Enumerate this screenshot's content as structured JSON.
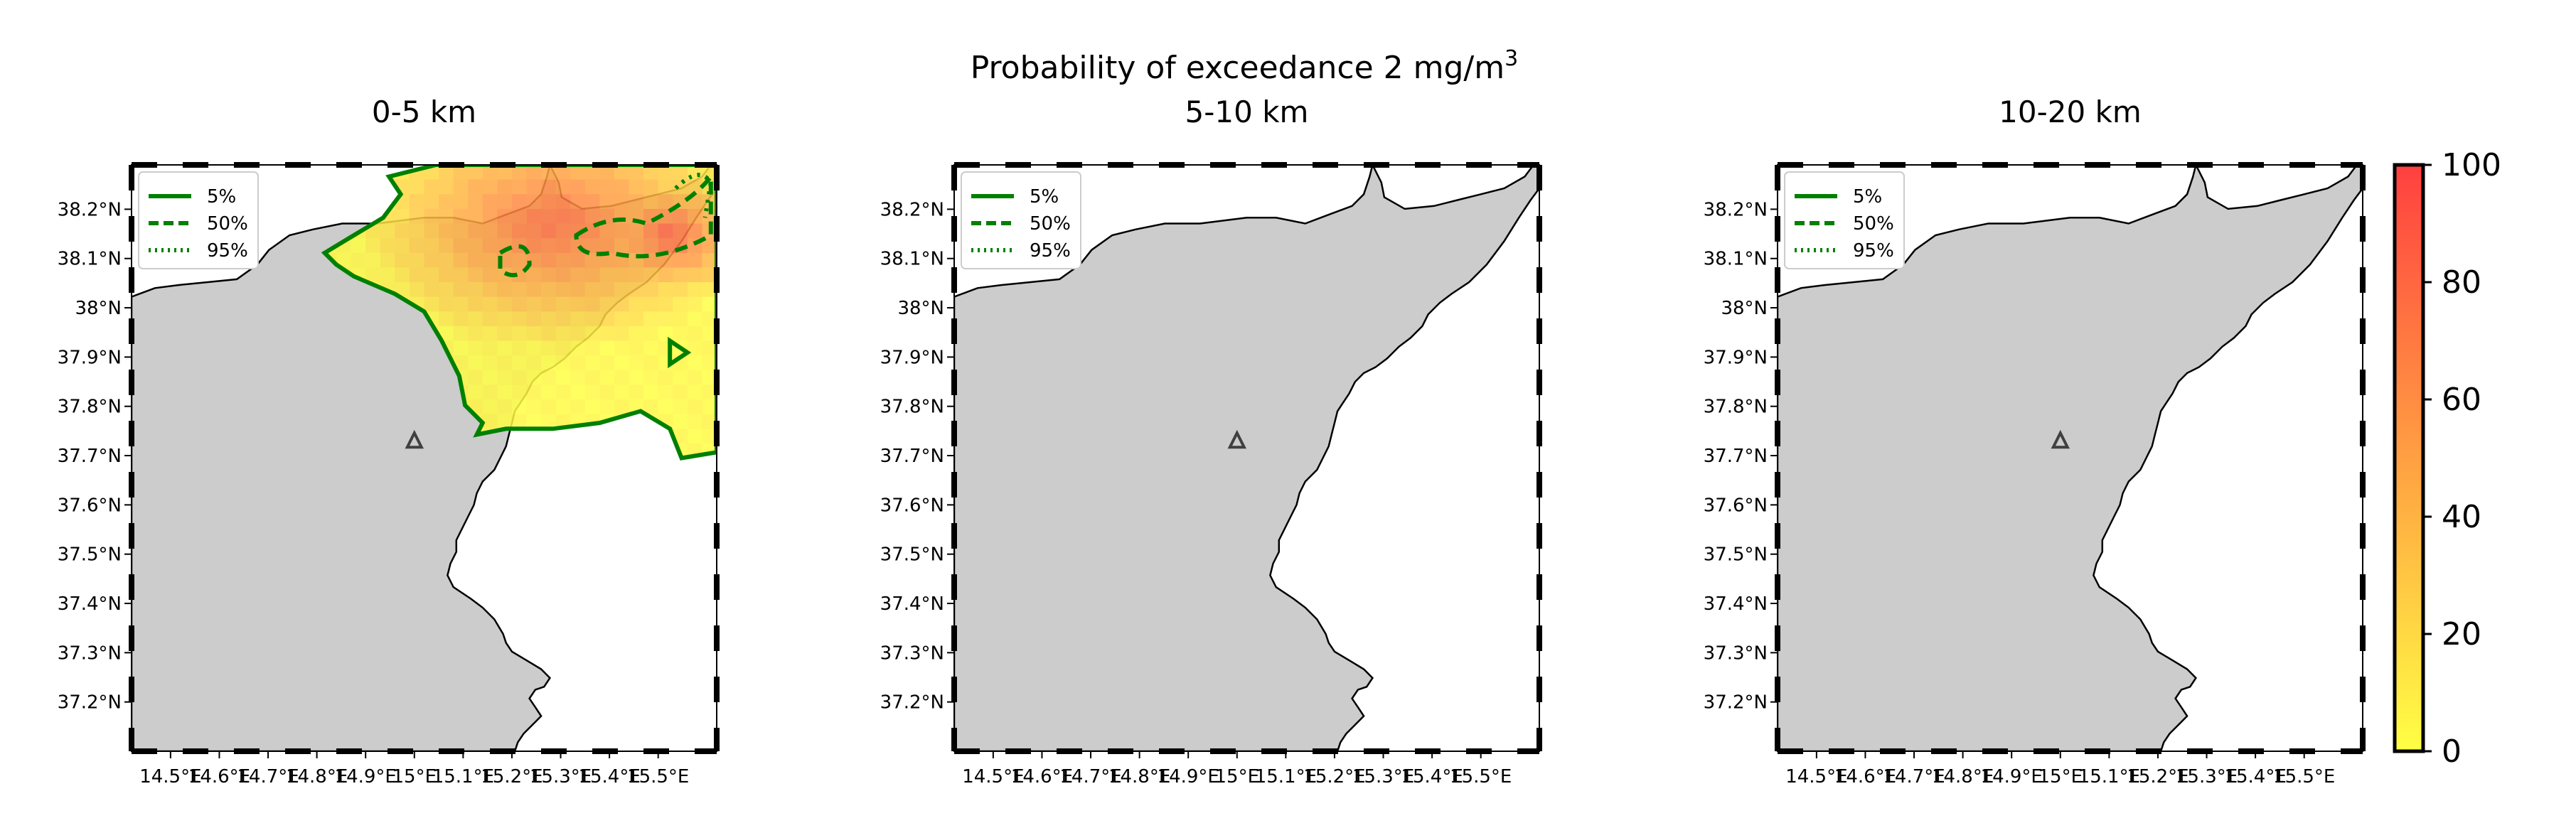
{
  "figure": {
    "suptitle": "Probability of exceedance 2 mg/m",
    "suptitle_sup": "3"
  },
  "panels": [
    {
      "title": "0-5 km",
      "show_probability": true
    },
    {
      "title": "5-10 km",
      "show_probability": false
    },
    {
      "title": "10-20 km",
      "show_probability": false
    }
  ],
  "axes": {
    "lat_ticks": [
      "38.2°N",
      "38.1°N",
      "38°N",
      "37.9°N",
      "37.8°N",
      "37.7°N",
      "37.6°N",
      "37.5°N",
      "37.4°N",
      "37.3°N",
      "37.2°N"
    ],
    "lat_values": [
      38.2,
      38.1,
      38.0,
      37.9,
      37.8,
      37.7,
      37.6,
      37.5,
      37.4,
      37.3,
      37.2
    ],
    "lon_ticks": [
      "14.5°E",
      "14.6°E",
      "14.7°E",
      "14.8°E",
      "14.9°E",
      "15°E",
      "15.1°E",
      "15.2°E",
      "15.3°E",
      "15.4°E",
      "15.5°E"
    ],
    "lon_values": [
      14.5,
      14.6,
      14.7,
      14.8,
      14.9,
      15.0,
      15.1,
      15.2,
      15.3,
      15.4,
      15.5
    ],
    "lon_range": [
      14.42,
      15.62
    ],
    "lat_range": [
      37.1,
      38.29
    ]
  },
  "legend": [
    {
      "label": "5%",
      "style": "solid"
    },
    {
      "label": "50%",
      "style": "dashed"
    },
    {
      "label": "95%",
      "style": "dotted"
    }
  ],
  "colorbar": {
    "ticks": [
      "0",
      "20",
      "40",
      "60",
      "80",
      "100"
    ],
    "values": [
      0,
      20,
      40,
      60,
      80,
      100
    ],
    "color_low": "#ffff44",
    "color_high": "#ff4040"
  },
  "colors": {
    "land": "#cccccc",
    "contour": "#008000",
    "volcano_marker": "#404040"
  },
  "volcano": {
    "name": "volcano-marker",
    "lon": 15.0,
    "lat": 37.73
  }
}
